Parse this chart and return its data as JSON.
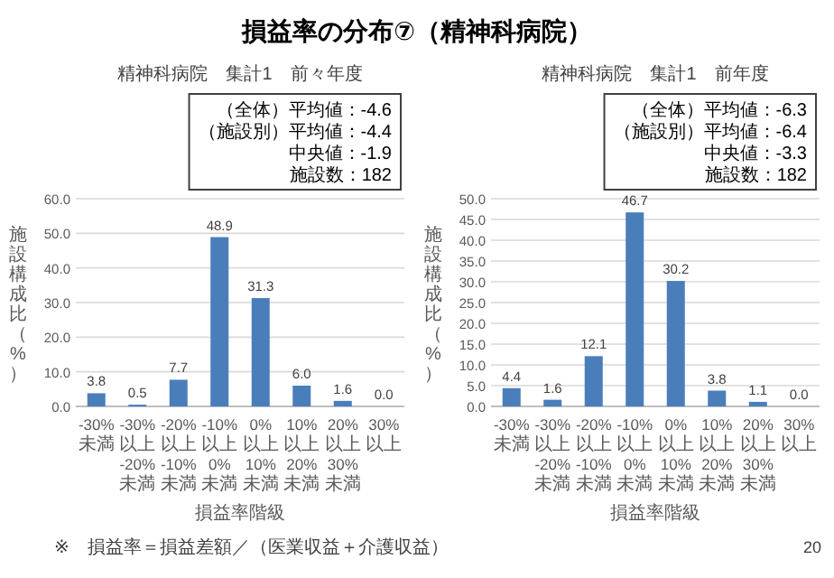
{
  "chart_data": [
    {
      "type": "bar",
      "title": "精神科病院　集計1　前々年度",
      "xlabel": "損益率階級",
      "ylabel": "施設構成比（%）",
      "categories": [
        "-30%未満",
        "-30%以上\n-20%未満",
        "-20%以上\n-10%未満",
        "-10%以上\n0%未満",
        "0%以上\n10%未満",
        "10%以上\n20%未満",
        "20%以上\n30%未満",
        "30%以上"
      ],
      "values": [
        3.8,
        0.5,
        7.7,
        48.9,
        31.3,
        6.0,
        1.6,
        0.0
      ],
      "value_labels": [
        "3.8",
        "0.5",
        "7.7",
        "48.9",
        "31.3",
        "6.0",
        "1.6",
        "0.0"
      ],
      "color": "#4a7ebb",
      "grid": "y",
      "ylim": [
        0,
        60
      ],
      "yticks": [
        {
          "value": 0,
          "label": "0.0"
        },
        {
          "value": 10,
          "label": "10.0"
        },
        {
          "value": 20,
          "label": "20.0"
        },
        {
          "value": 30,
          "label": "30.0"
        },
        {
          "value": 40,
          "label": "40.0"
        },
        {
          "value": 50,
          "label": "50.0"
        },
        {
          "value": 60,
          "label": "60.0"
        }
      ],
      "annotations": [
        "（全体）平均値：-4.6\n（施設別）平均値：-4.4\n中央値：-1.9\n施設数：182",
        "損益率の分布⑦（精神科病院）",
        "※　損益率＝損益差額／（医業収益＋介護収益）",
        "20"
      ]
    },
    {
      "type": "bar",
      "title": "精神科病院　集計1　前年度",
      "xlabel": "損益率階級",
      "ylabel": "施設構成比（%）",
      "categories": [
        "-30%未満",
        "-30%以上\n-20%未満",
        "-20%以上\n-10%未満",
        "-10%以上\n0%未満",
        "0%以上\n10%未満",
        "10%以上\n20%未満",
        "20%以上\n30%未満",
        "30%以上"
      ],
      "values": [
        4.4,
        1.6,
        12.1,
        46.7,
        30.2,
        3.8,
        1.1,
        0.0
      ],
      "value_labels": [
        "4.4",
        "1.6",
        "12.1",
        "46.7",
        "30.2",
        "3.8",
        "1.1",
        "0.0"
      ],
      "color": "#4a7ebb",
      "grid": "y",
      "ylim": [
        0,
        50
      ],
      "yticks": [
        {
          "value": 0,
          "label": "0.0"
        },
        {
          "value": 5,
          "label": "5.0"
        },
        {
          "value": 10,
          "label": "10.0"
        },
        {
          "value": 15,
          "label": "15.0"
        },
        {
          "value": 20,
          "label": "20.0"
        },
        {
          "value": 25,
          "label": "25.0"
        },
        {
          "value": 30,
          "label": "30.0"
        },
        {
          "value": 35,
          "label": "35.0"
        },
        {
          "value": 40,
          "label": "40.0"
        },
        {
          "value": 45,
          "label": "45.0"
        },
        {
          "value": 50,
          "label": "50.0"
        }
      ],
      "annotations": [
        "（全体）平均値：-6.3\n（施設別）平均値：-6.4\n中央値：-3.3\n施設数：182"
      ]
    }
  ]
}
